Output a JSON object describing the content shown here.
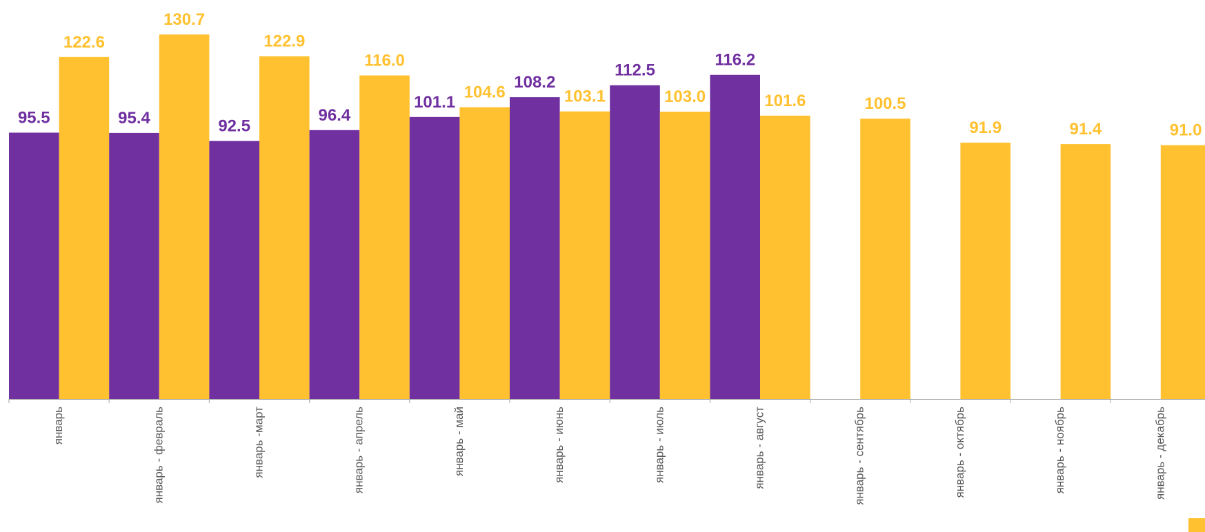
{
  "chart_data": {
    "type": "bar",
    "categories": [
      "январь",
      "январь - февраль",
      "январь  -март",
      "январь - апрель",
      "январь - май",
      "январь - июнь",
      "январь - июль",
      "январь - август",
      "январь - сентябрь",
      "январь - октябрь",
      "январь - ноябрь",
      "январь - декабрь"
    ],
    "series": [
      {
        "color": "#7030A0",
        "values": [
          95.5,
          95.4,
          92.5,
          96.4,
          101.1,
          108.2,
          112.5,
          116.2,
          null,
          null,
          null,
          null
        ],
        "labels": [
          "95.5",
          "95.4",
          "92.5",
          "96.4",
          "101.1",
          "108.2",
          "112.5",
          "116.2",
          "",
          "",
          "",
          ""
        ]
      },
      {
        "color": "#FFC12F",
        "values": [
          122.6,
          130.7,
          122.9,
          116.0,
          104.6,
          103.1,
          103.0,
          101.6,
          100.5,
          91.9,
          91.4,
          91.0
        ],
        "labels": [
          "122.6",
          "130.7",
          "122.9",
          "116.0",
          "104.6",
          "103.1",
          "103.0",
          "101.6",
          "100.5",
          "91.9",
          "91.4",
          "91.0"
        ]
      }
    ],
    "ylim": [
      0,
      130.7
    ],
    "grid": false,
    "axis_color": "#a6a6a6"
  }
}
